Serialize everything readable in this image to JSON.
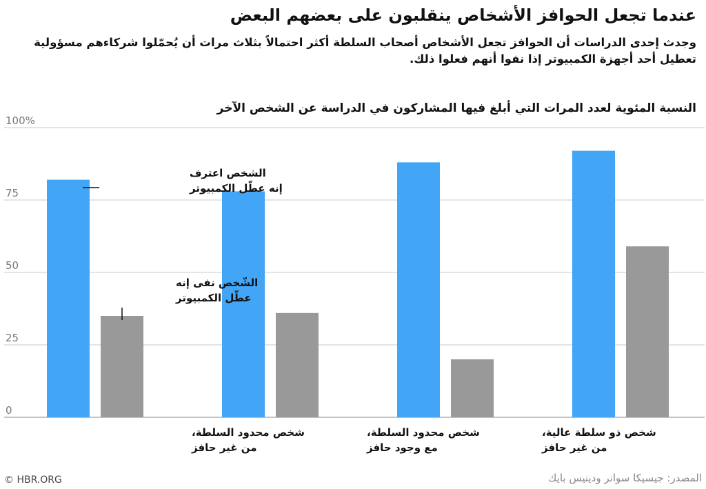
{
  "title": "عندما تجعل الحوافز الأشخاص ينقلبون على بعضهم البعض",
  "subtitle": "وجدث إحدى الدراسات أن الحوافز تجعل الأشخاص أصحاب السلطة أكثر احتمالاً بثلاث مرات أن يُحمّلوا شركاءهم مسؤولية تعطيل أحد أجهزة الكمبيوتر إذا نفوا أنهم فعلوا ذلك.",
  "chart_heading": "النسبة المئوية لعدد المرات التي أبلغ فيها المشاركون في الدراسة عن الشخص الآخر",
  "source": "المصدر: جيسيكا سوانر ودينيس بايك",
  "credit": "© HBR.ORG",
  "colors": {
    "blue": "#42a5f5",
    "gray": "#999999",
    "grid": "#c8c8c8"
  },
  "chart_data": {
    "type": "bar",
    "ylim": [
      0,
      100
    ],
    "yticks": [
      "0",
      "25",
      "50",
      "75",
      "100%"
    ],
    "grid": true,
    "categories": [
      [
        "شخص محدود السلطة،",
        "من غير حافز"
      ],
      [
        "شخص محدود السلطة،",
        "مع وجود حافز"
      ],
      [
        "شخص ذو سلطة عالية،",
        "من غير حافز"
      ],
      [
        "شخص ذو سلطة عالية،",
        "مع وجود حافز"
      ]
    ],
    "series": [
      {
        "values": [
          82,
          78,
          88,
          92
        ]
      },
      {
        "values": [
          35,
          36,
          20,
          59
        ]
      }
    ],
    "annotations": [
      [
        "الشخص اعترف",
        "إنه عطّل الكمبيوتر"
      ],
      [
        "الشّخص نفى إنه",
        "عطّل الكمبيوتر"
      ]
    ]
  }
}
